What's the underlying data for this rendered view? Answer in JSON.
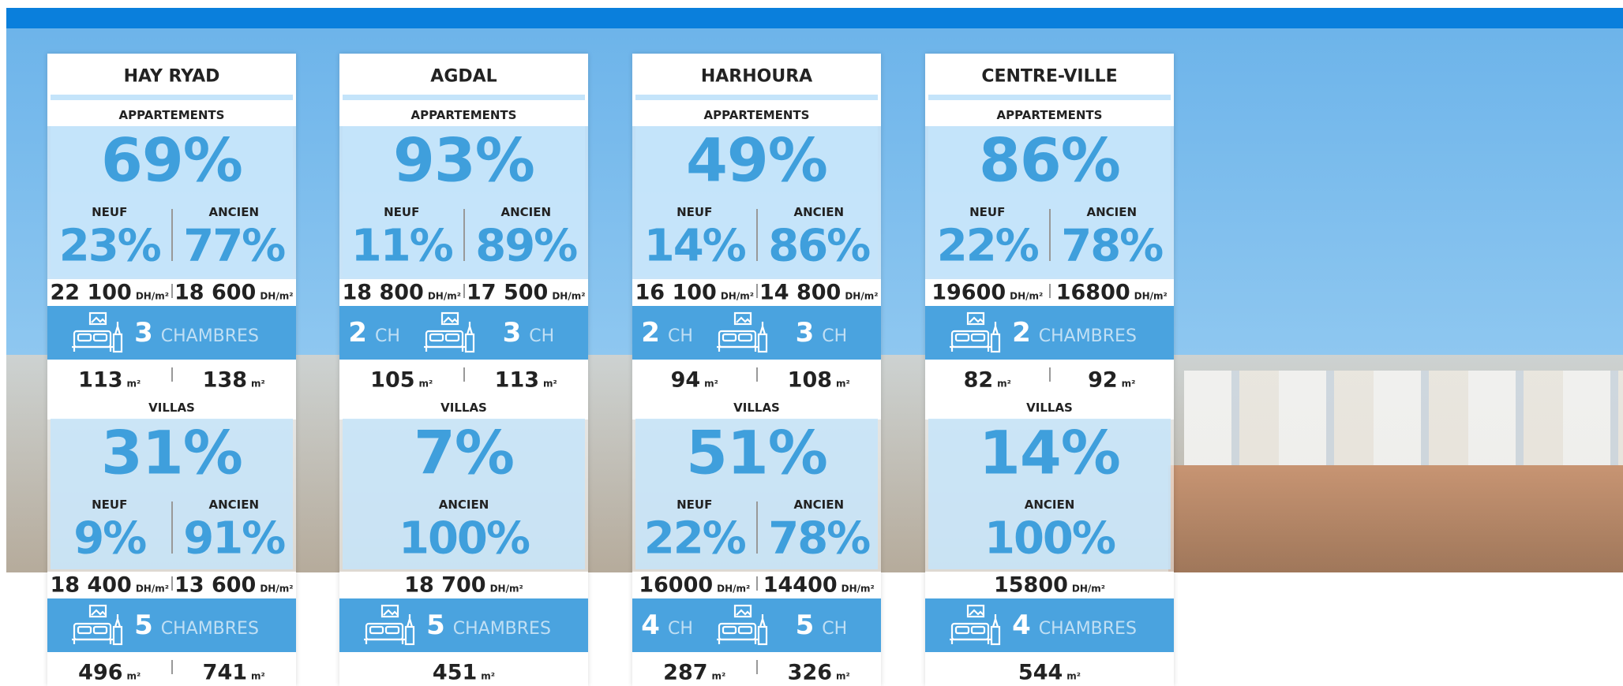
{
  "price_unit": "DH/m²",
  "surface_unit": "m²",
  "cards": [
    {
      "title": "HAY RYAD",
      "apartments": {
        "label": "APPARTEMENTS",
        "total": "69%",
        "split": [
          {
            "label": "NEUF",
            "value": "23%"
          },
          {
            "label": "ANCIEN",
            "value": "77%"
          }
        ],
        "prices": [
          "22 100",
          "18 600"
        ],
        "rooms": [
          {
            "count": "3",
            "label": "CHAMBRES"
          }
        ],
        "surfaces": [
          "113",
          "138"
        ]
      },
      "villas": {
        "label": "VILLAS",
        "total": "31%",
        "split": [
          {
            "label": "NEUF",
            "value": "9%"
          },
          {
            "label": "ANCIEN",
            "value": "91%"
          }
        ],
        "prices": [
          "18 400",
          "13 600"
        ],
        "rooms": [
          {
            "count": "5",
            "label": "CHAMBRES"
          }
        ],
        "surfaces": [
          "496",
          "741"
        ]
      }
    },
    {
      "title": "AGDAL",
      "apartments": {
        "label": "APPARTEMENTS",
        "total": "93%",
        "split": [
          {
            "label": "NEUF",
            "value": "11%"
          },
          {
            "label": "ANCIEN",
            "value": "89%"
          }
        ],
        "prices": [
          "18 800",
          "17 500"
        ],
        "rooms": [
          {
            "count": "2",
            "label": "CH"
          },
          {
            "count": "3",
            "label": "CH"
          }
        ],
        "surfaces": [
          "105",
          "113"
        ]
      },
      "villas": {
        "label": "VILLAS",
        "total": "7%",
        "split": [
          {
            "label": "ANCIEN",
            "value": "100%"
          }
        ],
        "prices": [
          "18 700"
        ],
        "rooms": [
          {
            "count": "5",
            "label": "CHAMBRES"
          }
        ],
        "surfaces": [
          "451"
        ]
      }
    },
    {
      "title": "HARHOURA",
      "apartments": {
        "label": "APPARTEMENTS",
        "total": "49%",
        "split": [
          {
            "label": "NEUF",
            "value": "14%"
          },
          {
            "label": "ANCIEN",
            "value": "86%"
          }
        ],
        "prices": [
          "16 100",
          "14 800"
        ],
        "rooms": [
          {
            "count": "2",
            "label": "CH"
          },
          {
            "count": "3",
            "label": "CH"
          }
        ],
        "surfaces": [
          "94",
          "108"
        ]
      },
      "villas": {
        "label": "VILLAS",
        "total": "51%",
        "split": [
          {
            "label": "NEUF",
            "value": "22%"
          },
          {
            "label": "ANCIEN",
            "value": "78%"
          }
        ],
        "prices": [
          "16000",
          "14400"
        ],
        "rooms": [
          {
            "count": "4",
            "label": "CH"
          },
          {
            "count": "5",
            "label": "CH"
          }
        ],
        "surfaces": [
          "287",
          "326"
        ]
      }
    },
    {
      "title": "CENTRE-VILLE",
      "apartments": {
        "label": "APPARTEMENTS",
        "total": "86%",
        "split": [
          {
            "label": "NEUF",
            "value": "22%"
          },
          {
            "label": "ANCIEN",
            "value": "78%"
          }
        ],
        "prices": [
          "19600",
          "16800"
        ],
        "rooms": [
          {
            "count": "2",
            "label": "CHAMBRES"
          }
        ],
        "surfaces": [
          "82",
          "92"
        ]
      },
      "villas": {
        "label": "VILLAS",
        "total": "14%",
        "split": [
          {
            "label": "ANCIEN",
            "value": "100%"
          }
        ],
        "prices": [
          "15800"
        ],
        "rooms": [
          {
            "count": "4",
            "label": "CHAMBRES"
          }
        ],
        "surfaces": [
          "544"
        ]
      }
    }
  ]
}
